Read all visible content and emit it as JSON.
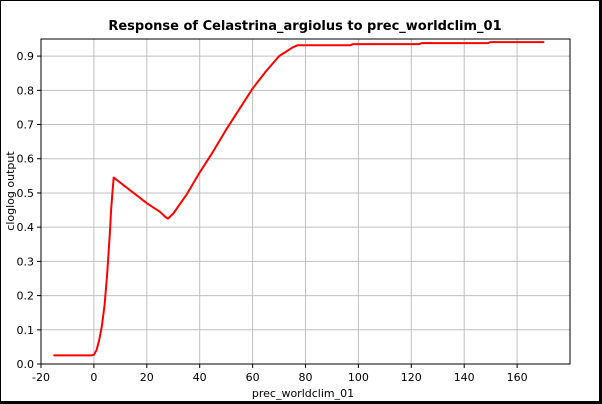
{
  "chart_data": {
    "type": "line",
    "title": "Response of Celastrina_argiolus to prec_worldclim_01",
    "xlabel": "prec_worldclim_01",
    "ylabel": "cloglog output",
    "xlim": [
      -20,
      180
    ],
    "ylim": [
      0.0,
      0.95
    ],
    "xticks": [
      -20,
      0,
      20,
      40,
      60,
      80,
      100,
      120,
      140,
      160
    ],
    "yticks": [
      0.0,
      0.1,
      0.2,
      0.3,
      0.4,
      0.5,
      0.6,
      0.7,
      0.8,
      0.9
    ],
    "xtick_labels": [
      "-20",
      "0",
      "20",
      "40",
      "60",
      "80",
      "100",
      "120",
      "140",
      "160"
    ],
    "ytick_labels": [
      "0.0",
      "0.1",
      "0.2",
      "0.3",
      "0.4",
      "0.5",
      "0.6",
      "0.7",
      "0.8",
      "0.9"
    ],
    "grid": true,
    "series": [
      {
        "color": "#ff0000",
        "x": [
          -15,
          -10,
          -5,
          -1,
          0,
          1,
          2,
          3,
          4,
          5,
          6,
          6.5,
          7,
          7.5,
          10,
          15,
          20,
          25,
          27,
          28,
          30,
          35,
          40,
          45,
          50,
          55,
          60,
          65,
          70,
          75,
          77,
          80,
          90,
          97,
          98,
          110,
          123,
          124,
          135,
          149,
          150,
          160,
          170
        ],
        "y": [
          0.025,
          0.025,
          0.025,
          0.025,
          0.027,
          0.04,
          0.07,
          0.11,
          0.17,
          0.26,
          0.38,
          0.45,
          0.5,
          0.545,
          0.53,
          0.5,
          0.47,
          0.445,
          0.43,
          0.425,
          0.44,
          0.495,
          0.56,
          0.62,
          0.685,
          0.745,
          0.805,
          0.855,
          0.9,
          0.925,
          0.932,
          0.932,
          0.932,
          0.932,
          0.935,
          0.935,
          0.935,
          0.938,
          0.938,
          0.938,
          0.941,
          0.941,
          0.941
        ]
      }
    ]
  }
}
